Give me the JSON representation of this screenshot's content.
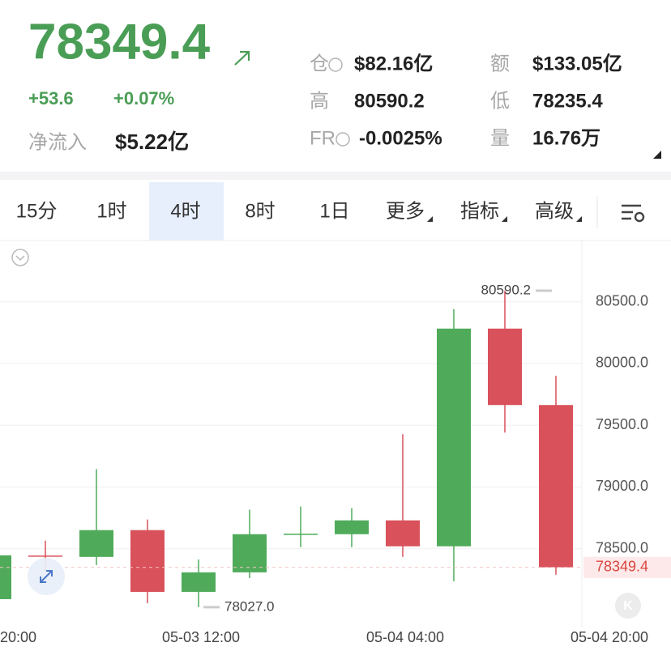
{
  "header": {
    "price": "78349.4",
    "change": "+53.6",
    "change_pct": "+0.07%",
    "net_inflow_label": "净流入",
    "net_inflow": "$5.22亿",
    "stats": [
      {
        "label": "仓",
        "value": "$82.16亿"
      },
      {
        "label": "额",
        "value": "$133.05亿"
      },
      {
        "label": "高",
        "value": "80590.2"
      },
      {
        "label": "低",
        "value": "78235.4"
      },
      {
        "label": "FR",
        "value": "-0.0025%"
      },
      {
        "label": "量",
        "value": "16.76万"
      }
    ]
  },
  "tabs": [
    "15分",
    "1时",
    "4时",
    "8时",
    "1日",
    "更多",
    "指标",
    "高级"
  ],
  "active_tab": 2,
  "chart_data": {
    "type": "candlestick",
    "categories": [
      "20:00",
      null,
      null,
      null,
      "05-03 12:00",
      null,
      null,
      null,
      "05-04 04:00",
      null,
      null,
      null,
      "05-04 20:00"
    ],
    "open": [
      78092,
      78445,
      78434,
      78651,
      78151,
      78309,
      78618,
      78618,
      78730,
      78520,
      80283,
      79664,
      null
    ],
    "high": [
      78460,
      78566,
      79145,
      78737,
      78414,
      78816,
      78842,
      78829,
      79428,
      80441,
      80590.2,
      79901,
      null
    ],
    "low": [
      78080,
      78322,
      78368,
      78059,
      78027.0,
      78263,
      78513,
      78513,
      78434,
      78237,
      79441,
      78290,
      null
    ],
    "close": [
      78447,
      78440,
      78651,
      78151,
      78309,
      78618,
      78622,
      78730,
      78520,
      80283,
      79664,
      78349.4,
      null
    ],
    "up_color": "#4fab5a",
    "down_color": "#d9515a",
    "ylim": [
      77895,
      80990
    ],
    "yticks": [
      {
        "value": 78500,
        "label": "78500.0"
      },
      {
        "value": 79000,
        "label": "79000.0"
      },
      {
        "value": 79500,
        "label": "79500.0"
      },
      {
        "value": 80000,
        "label": "80000.0"
      },
      {
        "value": 80500,
        "label": "80500.0"
      }
    ],
    "grid": true,
    "high_label": {
      "value": 80590.2,
      "label": "80590.2",
      "index": 10
    },
    "low_label": {
      "value": 78027.0,
      "label": "78027.0",
      "index": 4
    },
    "last_price": {
      "value": 78349.4,
      "label": "78349.4"
    }
  }
}
